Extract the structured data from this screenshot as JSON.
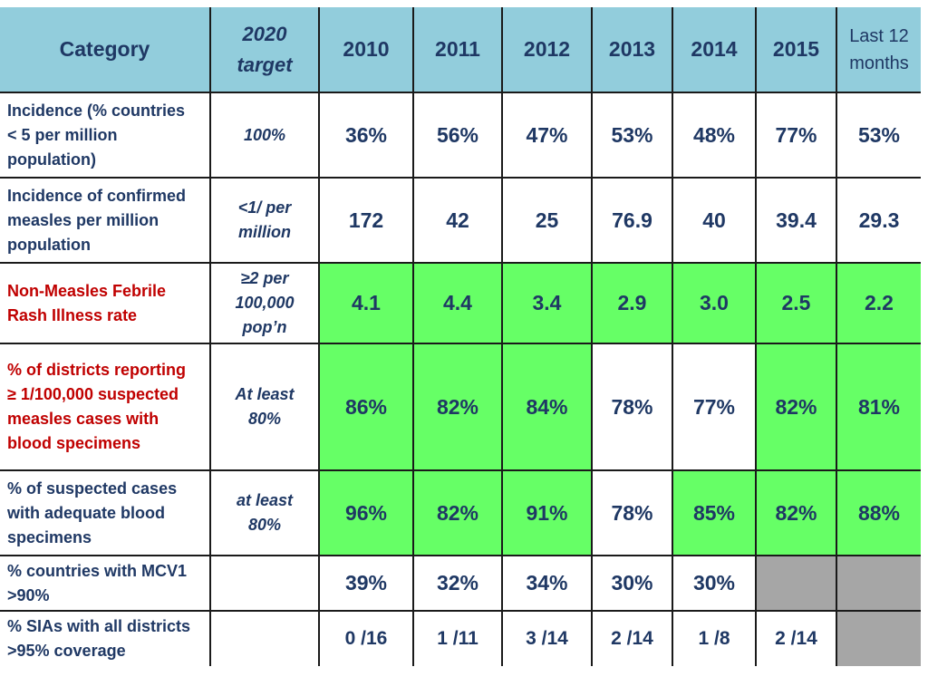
{
  "header": {
    "category": "Category",
    "target_line1": "2020",
    "target_line2": "target",
    "years": [
      "2010",
      "2011",
      "2012",
      "2013",
      "2014",
      "2015"
    ],
    "last12_line1": "Last 12",
    "last12_line2": "months"
  },
  "colors": {
    "header_bg": "#92cddc",
    "highlight_green": "#66ff66",
    "not_available_gray": "#a6a6a6",
    "text_navy": "#1f3864",
    "text_red": "#c00000"
  },
  "rows": [
    {
      "category": [
        "Incidence (% countries",
        "< 5 per million",
        "population)"
      ],
      "target": [
        "100%"
      ],
      "values": [
        "36%",
        "56%",
        "47%",
        "53%",
        "48%",
        "77%",
        "53%"
      ]
    },
    {
      "category": [
        "Incidence of confirmed",
        "measles per million",
        "population"
      ],
      "target": [
        "<1/ per",
        "million"
      ],
      "values": [
        "172",
        "42",
        "25",
        "76.9",
        "40",
        "39.4",
        "29.3"
      ]
    },
    {
      "category": [
        "Non-Measles  Febrile",
        "Rash Illness rate"
      ],
      "target": [
        "≥2 per",
        "100,000",
        "pop’n"
      ],
      "values": [
        "4.1",
        "4.4",
        "3.4",
        "2.9",
        "3.0",
        "2.5",
        "2.2"
      ]
    },
    {
      "category": [
        "% of districts reporting",
        "≥ 1/100,000 suspected",
        "measles cases with",
        "blood specimens"
      ],
      "target": [
        "At least",
        "80%"
      ],
      "values": [
        "86%",
        "82%",
        "84%",
        "78%",
        "77%",
        "82%",
        "81%"
      ]
    },
    {
      "category": [
        "% of suspected cases",
        "with adequate blood",
        "specimens"
      ],
      "target": [
        "at least",
        "80%"
      ],
      "values": [
        "96%",
        "82%",
        "91%",
        "78%",
        "85%",
        "82%",
        "88%"
      ]
    },
    {
      "category": [
        "% countries with MCV1",
        ">90%"
      ],
      "target": [],
      "values": [
        "39%",
        "32%",
        "34%",
        "30%",
        "30%",
        "",
        ""
      ]
    },
    {
      "category": [
        "% SIAs with all districts",
        ">95% coverage"
      ],
      "target": [],
      "values": [
        "0 /16",
        "1 /11",
        "3 /14",
        "2 /14",
        "1 /8",
        "2 /14",
        ""
      ]
    }
  ]
}
